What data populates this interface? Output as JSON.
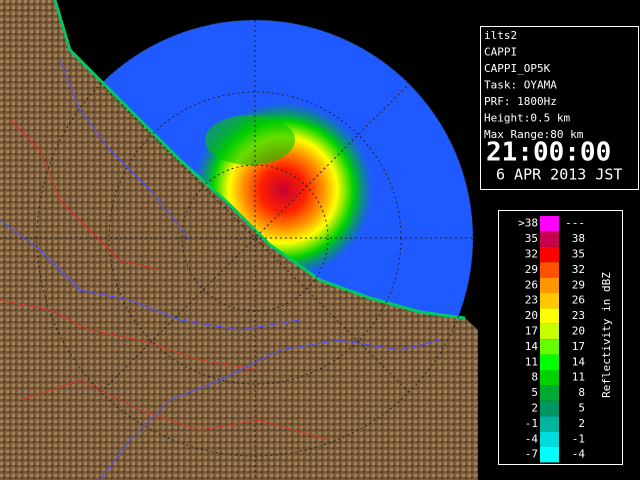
{
  "info": {
    "lines": [
      "ilts2",
      "CAPPI",
      "CAPPI_OP5K",
      "Task: OYAMA",
      "PRF: 1800Hz",
      "Height:0.5 km",
      "Max Range:80 km"
    ],
    "time": "21:00:00",
    "date": "6 APR 2013 JST"
  },
  "legend": {
    "title": "Reflectivity in dBZ",
    "rows": [
      {
        "low": ">38",
        "high": "---",
        "color": "#ff00ff"
      },
      {
        "low": "35",
        "high": "38",
        "color": "#c80050"
      },
      {
        "low": "32",
        "high": "35",
        "color": "#ff0000"
      },
      {
        "low": "29",
        "high": "32",
        "color": "#ff5000"
      },
      {
        "low": "26",
        "high": "29",
        "color": "#ff9600"
      },
      {
        "low": "23",
        "high": "26",
        "color": "#ffc800"
      },
      {
        "low": "20",
        "high": "23",
        "color": "#ffff00"
      },
      {
        "low": "17",
        "high": "20",
        "color": "#c8ff00"
      },
      {
        "low": "14",
        "high": "17",
        "color": "#64ff00"
      },
      {
        "low": "11",
        "high": "14",
        "color": "#00ff00"
      },
      {
        "low": "8",
        "high": "11",
        "color": "#00d200"
      },
      {
        "low": "5",
        "high": "8",
        "color": "#00aa32"
      },
      {
        "low": "2",
        "high": "5",
        "color": "#009664"
      },
      {
        "low": "-1",
        "high": "2",
        "color": "#00b4a0"
      },
      {
        "low": "-4",
        "high": "-1",
        "color": "#00dcdc"
      },
      {
        "low": "-7",
        "high": "-4",
        "color": "#00ffff"
      }
    ]
  }
}
